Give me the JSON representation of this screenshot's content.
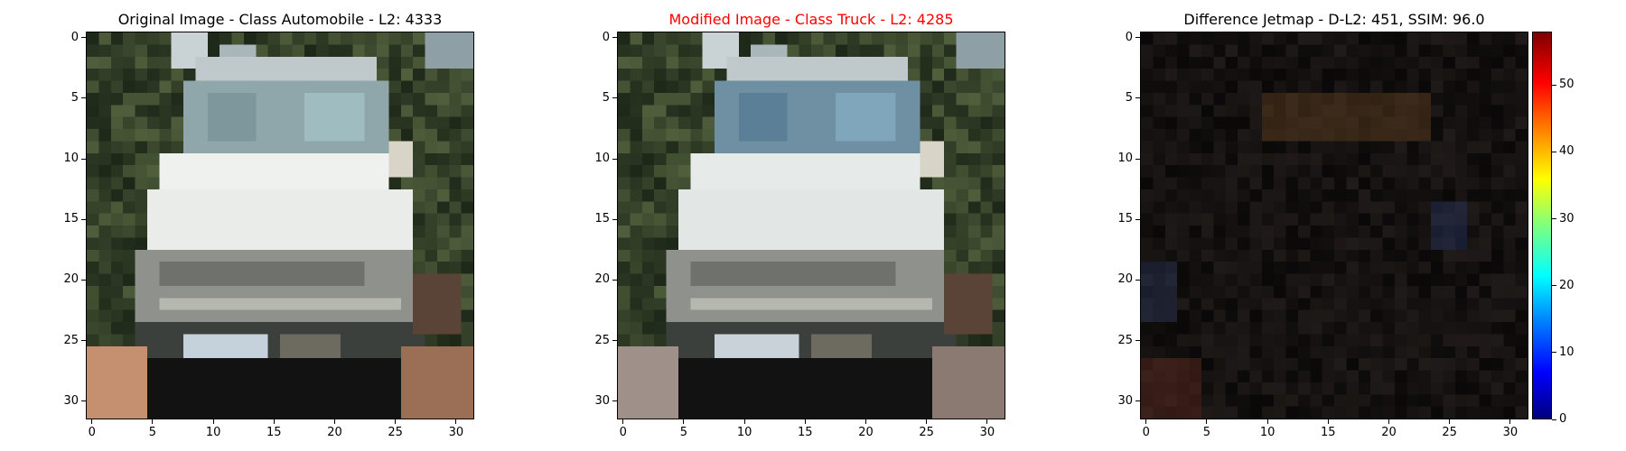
{
  "panels": [
    {
      "id": "original",
      "title": "Original Image - Class Automobile - L2: 4333",
      "title_color": "#000000",
      "x_ticks": [
        "0",
        "5",
        "10",
        "15",
        "20",
        "25",
        "30"
      ],
      "y_ticks": [
        "0",
        "5",
        "10",
        "15",
        "20",
        "25",
        "30"
      ]
    },
    {
      "id": "modified",
      "title": "Modified Image - Class Truck - L2: 4285",
      "title_color": "#ff0000",
      "x_ticks": [
        "0",
        "5",
        "10",
        "15",
        "20",
        "25",
        "30"
      ],
      "y_ticks": [
        "0",
        "5",
        "10",
        "15",
        "20",
        "25",
        "30"
      ]
    },
    {
      "id": "difference",
      "title": "Difference Jetmap - D-L2: 451, SSIM: 96.0",
      "title_color": "#000000",
      "x_ticks": [
        "0",
        "5",
        "10",
        "15",
        "20",
        "25",
        "30"
      ],
      "y_ticks": [
        "0",
        "5",
        "10",
        "15",
        "20",
        "25",
        "30"
      ]
    }
  ],
  "colorbar": {
    "colormap": "jet",
    "ticks": [
      "0",
      "10",
      "20",
      "30",
      "40",
      "50"
    ]
  }
}
